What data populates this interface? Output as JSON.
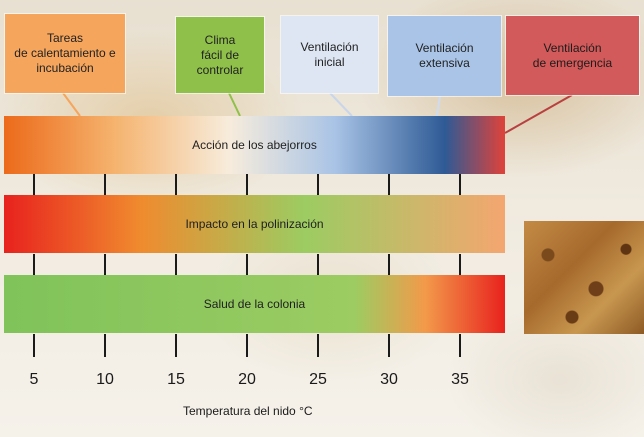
{
  "boxes": [
    {
      "text": "Tareas\nde calentamiento e\nincubación",
      "color": "#f5a55c"
    },
    {
      "text": "Clima\nfácil de\ncontrolar",
      "color": "#8fc04a"
    },
    {
      "text": "Ventilación\ninicial",
      "color": "#dde6f2"
    },
    {
      "text": "Ventilación\nextensiva",
      "color": "#a9c4e6"
    },
    {
      "text": "Ventilación\nde emergencia",
      "color": "#d25a5a"
    }
  ],
  "bands": [
    {
      "label": "Acción de los abejorros",
      "stops": [
        "#ec6a1a",
        "#f5b36e",
        "#f7ecdc",
        "#a9c4e6",
        "#2e5a95",
        "#e0423a"
      ]
    },
    {
      "label": "Impacto en la polinización",
      "stops": [
        "#e8221e",
        "#f08a2e",
        "#9ccc62",
        "#f4a670"
      ]
    },
    {
      "label": "Salud de la colonia",
      "stops": [
        "#7fc35a",
        "#9ccc62",
        "#f29a4a",
        "#e8221e"
      ]
    }
  ],
  "axis": {
    "ticks": [
      5,
      10,
      15,
      20,
      25,
      30,
      35
    ],
    "title": "Temperatura del nido °C"
  },
  "colors": {
    "connector_orange": "#f5a55c",
    "connector_green": "#8fc04a",
    "connector_blue": "#a9c4e6",
    "connector_red": "#b84040"
  }
}
